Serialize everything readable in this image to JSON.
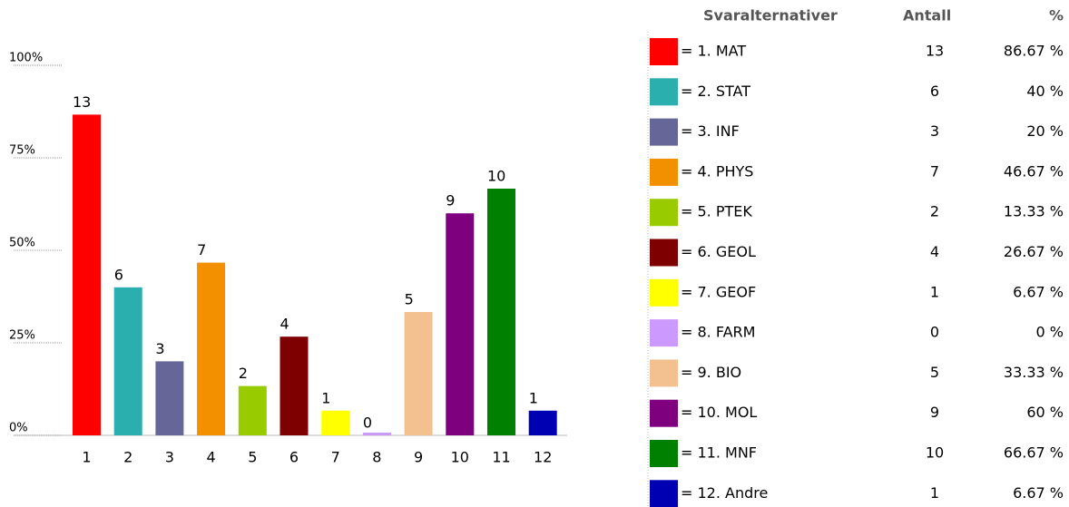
{
  "chart_data": {
    "type": "bar",
    "categories": [
      "1",
      "2",
      "3",
      "4",
      "5",
      "6",
      "7",
      "8",
      "9",
      "10",
      "11",
      "12"
    ],
    "values": [
      86.67,
      40,
      20,
      46.67,
      13.33,
      26.67,
      6.67,
      0,
      33.33,
      60,
      66.67,
      6.67
    ],
    "value_labels": [
      "86.67 %",
      "40 %",
      "20 %",
      "46.67 %",
      "13.33 %",
      "26.67 %",
      "6.67 %",
      "0 %",
      "33.33 %",
      "60 %",
      "66.67 %",
      "6.67 %"
    ],
    "counts": [
      13,
      6,
      3,
      7,
      2,
      4,
      1,
      0,
      5,
      9,
      10,
      1
    ],
    "labels": [
      "= 1. MAT",
      "= 2. STAT",
      "= 3. INF",
      "= 4. PHYS",
      "= 5. PTEK",
      "= 6. GEOL",
      "= 7. GEOF",
      "= 8. FARM",
      "= 9. BIO",
      "= 10. MOL",
      "= 11. MNF",
      "= 12. Andre"
    ],
    "colors": [
      "#ff0000",
      "#2aaeae",
      "#666699",
      "#f39000",
      "#99cc00",
      "#7f0000",
      "#ffff00",
      "#cc99ff",
      "#f3c090",
      "#7f007f",
      "#008000",
      "#0000b3"
    ],
    "legend_headers": [
      "Svaralternativer",
      "Antall",
      "%"
    ],
    "ylim": [
      0,
      100
    ],
    "yticks": [
      {
        "value": 0,
        "label": "0%"
      },
      {
        "value": 25,
        "label": "25%"
      },
      {
        "value": 50,
        "label": "50%"
      },
      {
        "value": 75,
        "label": "75%"
      },
      {
        "value": 100,
        "label": "100%"
      }
    ]
  }
}
